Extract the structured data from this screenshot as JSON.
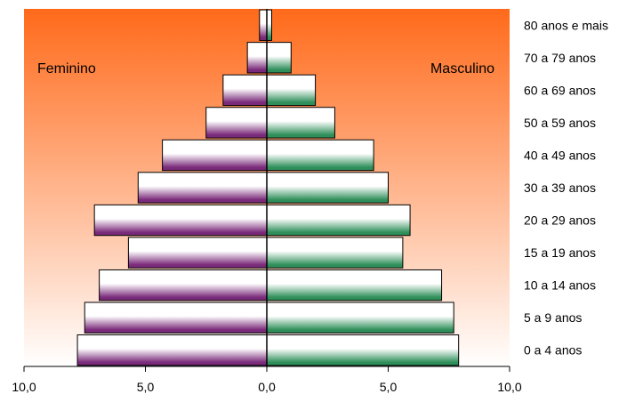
{
  "chart_data": {
    "type": "bar",
    "orientation": "horizontal",
    "layout": "population-pyramid",
    "categories": [
      "0 a 4 anos",
      "5 a 9 anos",
      "10 a 14 anos",
      "15 a 19 anos",
      "20 a 29 anos",
      "30 a 39 anos",
      "40 a 49 anos",
      "50 a 59 anos",
      "60 a 69 anos",
      "70 a 79 anos",
      "80 anos e mais"
    ],
    "series": [
      {
        "name": "Feminino",
        "side": "left",
        "color": "#7a2a7a",
        "values": [
          7.8,
          7.5,
          6.9,
          5.7,
          7.1,
          5.3,
          4.3,
          2.5,
          1.8,
          0.8,
          0.3
        ]
      },
      {
        "name": "Masculino",
        "side": "right",
        "color": "#2f8f5a",
        "values": [
          7.9,
          7.7,
          7.2,
          5.6,
          5.9,
          5.0,
          4.4,
          2.8,
          2.0,
          1.0,
          0.2
        ]
      }
    ],
    "x_ticks": [
      "10,0",
      "5,0",
      "0,0",
      "5,0",
      "10,0"
    ],
    "xlim": [
      -10,
      10
    ],
    "background_gradient": [
      "#ff6a1a",
      "#ffffff"
    ],
    "grid": false,
    "legend": "inside-top"
  }
}
